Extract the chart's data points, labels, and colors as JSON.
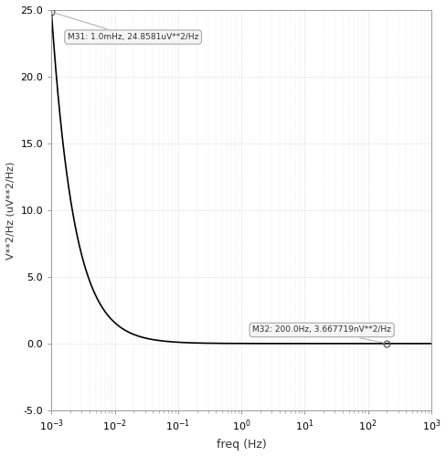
{
  "xlabel": "freq (Hz)",
  "ylabel": "V**2/Hz (uV**2/Hz)",
  "xlim": [
    0.001,
    1000.0
  ],
  "ylim": [
    -5.0,
    25.0
  ],
  "yticks": [
    -5.0,
    0.0,
    5.0,
    10.0,
    15.0,
    20.0,
    25.0
  ],
  "ytick_labels": [
    "-5.0",
    "0.0",
    "5.0",
    "10.0",
    "15.0",
    "20.0",
    "25.0"
  ],
  "marker1_x": 0.001,
  "marker1_y": 24.8581,
  "marker1_label": "M31: 1.0mHz, 24.8581uV**2/Hz",
  "marker2_x": 200.0,
  "marker2_y": 0.0,
  "marker2_label": "M32: 200.0Hz, 3.667719nV**2/Hz",
  "curve_color": "#000000",
  "background_color": "#ffffff",
  "spine_color": "#999999",
  "grid_color": "#cccccc",
  "annotation_box_color": "#f5f5f5",
  "annotation_edge_color": "#aaaaaa",
  "curve_alpha": 1.2,
  "curve_A": 24.8581,
  "curve_f_ref": 0.001
}
